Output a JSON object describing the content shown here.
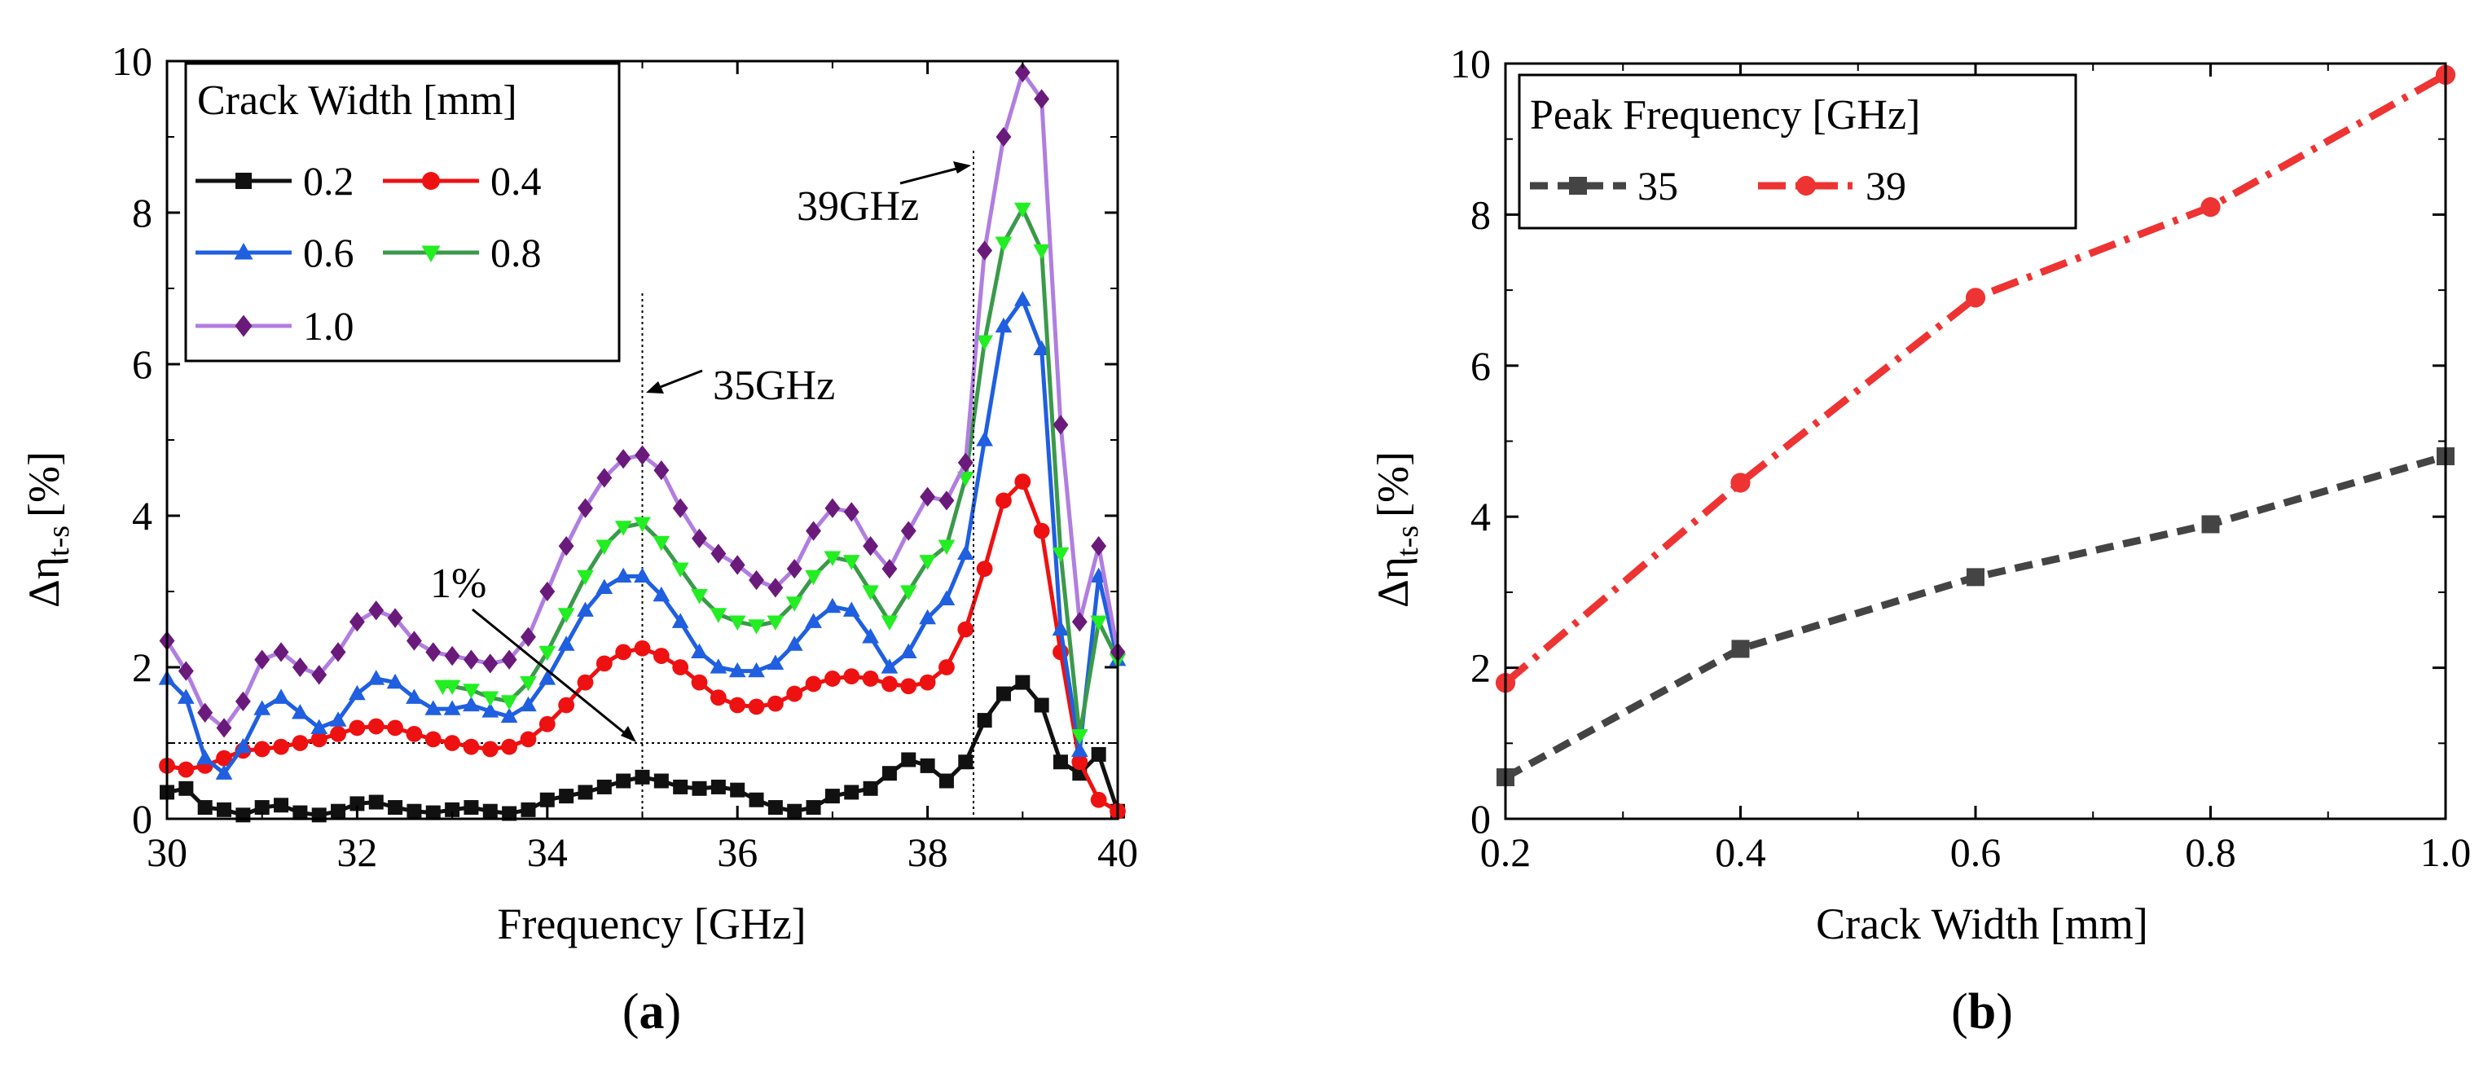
{
  "colors": {
    "s02": "#111111",
    "s04": "#ee1111",
    "s06": "#1f5fe0",
    "s08": "#22ee22",
    "s08line": "#3a9a4a",
    "s10": "#6a1a7a",
    "s10line": "#b07ee0",
    "b35": "#444444",
    "b39": "#ee3333"
  },
  "panels": {
    "a": {
      "open": "(",
      "letter": "a",
      "close": ")"
    },
    "b": {
      "open": "(",
      "letter": "b",
      "close": ")"
    }
  },
  "chart_data": [
    {
      "type": "line",
      "panel": "a",
      "xlabel": "Frequency [GHz]",
      "ylabel_main": "Δη",
      "ylabel_sub": "t-s",
      "ylabel_unit": "[%]",
      "xlim": [
        30,
        40
      ],
      "ylim": [
        0,
        10
      ],
      "xticks": [
        "30",
        "32",
        "34",
        "36",
        "38",
        "40"
      ],
      "yticks": [
        "0",
        "2",
        "4",
        "6",
        "8",
        "10"
      ],
      "legend_title": "Crack Width [mm]",
      "legend_location": "top-left",
      "annotations": {
        "peak39": "39GHz",
        "peak35": "35GHz",
        "threshold": "1%"
      },
      "threshold_y": 1,
      "vlines": [
        35,
        39
      ],
      "series": [
        {
          "name": "0.2",
          "key": "s02",
          "marker": "square",
          "x": [
            30,
            30.2,
            30.4,
            30.6,
            30.8,
            31,
            31.2,
            31.4,
            31.6,
            31.8,
            32,
            32.2,
            32.4,
            32.6,
            32.8,
            33,
            33.2,
            33.4,
            33.6,
            33.8,
            34,
            34.2,
            34.4,
            34.6,
            34.8,
            35,
            35.2,
            35.4,
            35.6,
            35.8,
            36,
            36.2,
            36.4,
            36.6,
            36.8,
            37,
            37.2,
            37.4,
            37.6,
            37.8,
            38,
            38.2,
            38.4,
            38.6,
            38.8,
            39,
            39.2,
            39.4,
            39.6,
            39.8,
            40
          ],
          "y": [
            0.35,
            0.4,
            0.15,
            0.12,
            0.05,
            0.15,
            0.18,
            0.08,
            0.05,
            0.1,
            0.2,
            0.22,
            0.15,
            0.1,
            0.08,
            0.12,
            0.15,
            0.1,
            0.07,
            0.12,
            0.25,
            0.3,
            0.35,
            0.42,
            0.5,
            0.55,
            0.5,
            0.42,
            0.4,
            0.42,
            0.38,
            0.25,
            0.15,
            0.1,
            0.15,
            0.3,
            0.35,
            0.4,
            0.6,
            0.78,
            0.7,
            0.5,
            0.75,
            1.3,
            1.65,
            1.8,
            1.5,
            0.75,
            0.6,
            0.85,
            0.1
          ]
        },
        {
          "name": "0.4",
          "key": "s04",
          "marker": "circle",
          "x": [
            30,
            30.2,
            30.4,
            30.6,
            30.8,
            31,
            31.2,
            31.4,
            31.6,
            31.8,
            32,
            32.2,
            32.4,
            32.6,
            32.8,
            33,
            33.2,
            33.4,
            33.6,
            33.8,
            34,
            34.2,
            34.4,
            34.6,
            34.8,
            35,
            35.2,
            35.4,
            35.6,
            35.8,
            36,
            36.2,
            36.4,
            36.6,
            36.8,
            37,
            37.2,
            37.4,
            37.6,
            37.8,
            38,
            38.2,
            38.4,
            38.6,
            38.8,
            39,
            39.2,
            39.4,
            39.6,
            39.8,
            40
          ],
          "y": [
            0.7,
            0.65,
            0.7,
            0.8,
            0.9,
            0.92,
            0.95,
            1.0,
            1.05,
            1.12,
            1.2,
            1.22,
            1.2,
            1.12,
            1.05,
            1.0,
            0.95,
            0.92,
            0.95,
            1.05,
            1.25,
            1.5,
            1.8,
            2.05,
            2.2,
            2.25,
            2.15,
            2.0,
            1.8,
            1.6,
            1.5,
            1.48,
            1.52,
            1.65,
            1.78,
            1.85,
            1.88,
            1.85,
            1.78,
            1.75,
            1.8,
            2.0,
            2.5,
            3.3,
            4.2,
            4.45,
            3.8,
            2.2,
            0.75,
            0.25,
            0.1
          ]
        },
        {
          "name": "0.6",
          "key": "s06",
          "marker": "triangle-up",
          "x": [
            30,
            30.2,
            30.4,
            30.6,
            30.8,
            31,
            31.2,
            31.4,
            31.6,
            31.8,
            32,
            32.2,
            32.4,
            32.6,
            32.8,
            33,
            33.2,
            33.4,
            33.6,
            33.8,
            34,
            34.2,
            34.4,
            34.6,
            34.8,
            35,
            35.2,
            35.4,
            35.6,
            35.8,
            36,
            36.2,
            36.4,
            36.6,
            36.8,
            37,
            37.2,
            37.4,
            37.6,
            37.8,
            38,
            38.2,
            38.4,
            38.6,
            38.8,
            39,
            39.2,
            39.4,
            39.6,
            39.8,
            40
          ],
          "y": [
            1.85,
            1.6,
            0.8,
            0.6,
            0.95,
            1.45,
            1.6,
            1.4,
            1.2,
            1.3,
            1.65,
            1.85,
            1.8,
            1.6,
            1.45,
            1.45,
            1.5,
            1.42,
            1.35,
            1.5,
            1.85,
            2.3,
            2.75,
            3.05,
            3.2,
            3.2,
            2.95,
            2.6,
            2.2,
            2.0,
            1.95,
            1.95,
            2.05,
            2.3,
            2.6,
            2.8,
            2.75,
            2.4,
            2.0,
            2.2,
            2.65,
            2.9,
            3.5,
            5.0,
            6.5,
            6.85,
            6.2,
            2.5,
            0.9,
            3.2,
            2.1
          ]
        },
        {
          "name": "0.8",
          "key": "s08",
          "lineKey": "s08line",
          "marker": "triangle-down",
          "x": [
            32.9,
            33,
            33.2,
            33.4,
            33.6,
            33.8,
            34,
            34.2,
            34.4,
            34.6,
            34.8,
            35,
            35.2,
            35.4,
            35.6,
            35.8,
            36,
            36.2,
            36.4,
            36.6,
            36.8,
            37,
            37.2,
            37.4,
            37.6,
            37.8,
            38,
            38.2,
            38.4,
            38.6,
            38.8,
            39,
            39.2,
            39.4,
            39.6,
            39.8,
            40
          ],
          "y": [
            1.75,
            1.75,
            1.7,
            1.6,
            1.55,
            1.8,
            2.2,
            2.7,
            3.2,
            3.6,
            3.85,
            3.9,
            3.65,
            3.3,
            2.95,
            2.7,
            2.6,
            2.55,
            2.6,
            2.85,
            3.2,
            3.45,
            3.4,
            3.0,
            2.6,
            3.0,
            3.4,
            3.6,
            4.5,
            6.3,
            7.6,
            8.05,
            7.5,
            3.5,
            1.1,
            2.6,
            2.1
          ]
        },
        {
          "name": "1.0",
          "key": "s10",
          "lineKey": "s10line",
          "marker": "diamond",
          "x": [
            30,
            30.2,
            30.4,
            30.6,
            30.8,
            31,
            31.2,
            31.4,
            31.6,
            31.8,
            32,
            32.2,
            32.4,
            32.6,
            32.8,
            33,
            33.2,
            33.4,
            33.6,
            33.8,
            34,
            34.2,
            34.4,
            34.6,
            34.8,
            35,
            35.2,
            35.4,
            35.6,
            35.8,
            36,
            36.2,
            36.4,
            36.6,
            36.8,
            37,
            37.2,
            37.4,
            37.6,
            37.8,
            38,
            38.2,
            38.4,
            38.6,
            38.8,
            39,
            39.2,
            39.4,
            39.6,
            39.8,
            40
          ],
          "y": [
            2.35,
            1.95,
            1.4,
            1.2,
            1.55,
            2.1,
            2.2,
            2.0,
            1.9,
            2.2,
            2.6,
            2.75,
            2.65,
            2.35,
            2.2,
            2.15,
            2.1,
            2.05,
            2.1,
            2.4,
            3.0,
            3.6,
            4.1,
            4.5,
            4.75,
            4.8,
            4.6,
            4.1,
            3.7,
            3.5,
            3.35,
            3.15,
            3.05,
            3.3,
            3.8,
            4.1,
            4.05,
            3.6,
            3.3,
            3.8,
            4.25,
            4.2,
            4.7,
            7.5,
            9.0,
            9.85,
            9.5,
            5.2,
            2.6,
            3.6,
            2.2
          ]
        }
      ]
    },
    {
      "type": "line",
      "panel": "b",
      "xlabel": "Crack Width [mm]",
      "ylabel_main": "Δη",
      "ylabel_sub": "t-s",
      "ylabel_unit": "[%]",
      "xlim": [
        0.2,
        1.0
      ],
      "ylim": [
        0,
        10
      ],
      "xticks": [
        "0.2",
        "0.4",
        "0.6",
        "0.8",
        "1.0"
      ],
      "yticks": [
        "0",
        "2",
        "4",
        "6",
        "8",
        "10"
      ],
      "legend_title": "Peak Frequency [GHz]",
      "legend_location": "top-left",
      "x": [
        0.2,
        0.4,
        0.6,
        0.8,
        1.0
      ],
      "series": [
        {
          "name": "35",
          "key": "b35",
          "marker": "square",
          "dash": "dashed",
          "values": [
            0.55,
            2.25,
            3.2,
            3.9,
            4.8
          ]
        },
        {
          "name": "39",
          "key": "b39",
          "marker": "circle",
          "dash": "dashdot",
          "values": [
            1.8,
            4.45,
            6.9,
            8.1,
            9.85
          ]
        }
      ]
    }
  ]
}
